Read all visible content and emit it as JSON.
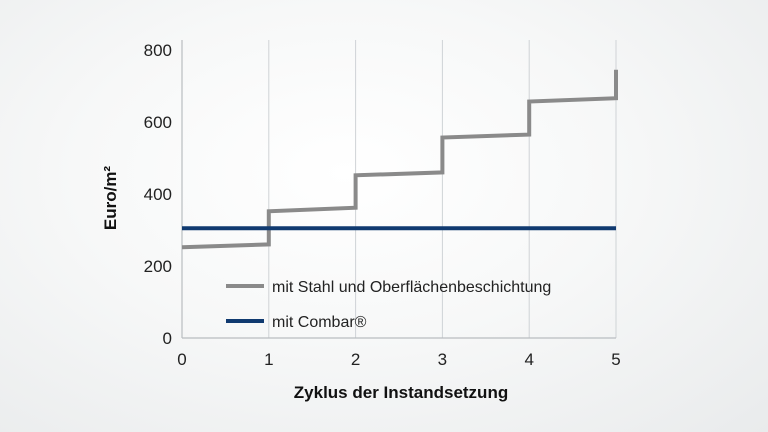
{
  "chart_data": {
    "type": "line",
    "xlabel": "Zyklus der Instandsetzung",
    "ylabel": "Euro/m²",
    "xlim": [
      0,
      5
    ],
    "ylim": [
      0,
      800
    ],
    "x_ticks": [
      "0",
      "1",
      "2",
      "3",
      "4",
      "5"
    ],
    "y_ticks": [
      "0",
      "200",
      "400",
      "600",
      "800"
    ],
    "grid": "vertical",
    "legend_position": "bottom-right",
    "series": [
      {
        "name": "mit Stahl und Oberflächenbeschichtung",
        "color": "#8a8a8a",
        "x": [
          0,
          1,
          1,
          2,
          2,
          3,
          3,
          4,
          4,
          5,
          5
        ],
        "y": [
          252,
          260,
          352,
          362,
          452,
          460,
          557,
          565,
          657,
          666,
          745
        ]
      },
      {
        "name": "mit Combar®",
        "color": "#103a70",
        "x": [
          0,
          5
        ],
        "y": [
          305,
          305
        ]
      }
    ]
  }
}
